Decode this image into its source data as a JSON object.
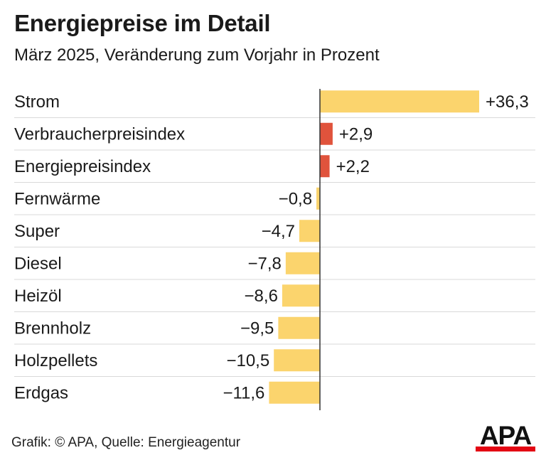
{
  "chart_data": {
    "type": "bar",
    "orientation": "horizontal",
    "title": "Energiepreise im Detail",
    "subtitle": "März 2025, Veränderung zum Vorjahr in Prozent",
    "categories": [
      "Strom",
      "Verbraucherpreisindex",
      "Energiepreisindex",
      "Fernwärme",
      "Super",
      "Diesel",
      "Heizöl",
      "Brennholz",
      "Holzpellets",
      "Erdgas"
    ],
    "values": [
      36.3,
      2.9,
      2.2,
      -0.8,
      -4.7,
      -7.8,
      -8.6,
      -9.5,
      -10.5,
      -11.6
    ],
    "value_labels": [
      "+36,3",
      "+2,9",
      "+2,2",
      "−0,8",
      "−4,7",
      "−7,8",
      "−8,6",
      "−9,5",
      "−10,5",
      "−11,6"
    ],
    "highlight": [
      false,
      true,
      true,
      false,
      false,
      false,
      false,
      false,
      false,
      false
    ],
    "colors": {
      "default": "#fbd46d",
      "highlight": "#e0533c",
      "axis": "#333333",
      "grid": "#d9d9d9"
    },
    "xlabel": "",
    "ylabel": "",
    "xlim": [
      -11.6,
      36.3
    ]
  },
  "footer": {
    "credit": "Grafik: © APA, Quelle: Energieagentur"
  },
  "logo": {
    "text": "APA"
  }
}
